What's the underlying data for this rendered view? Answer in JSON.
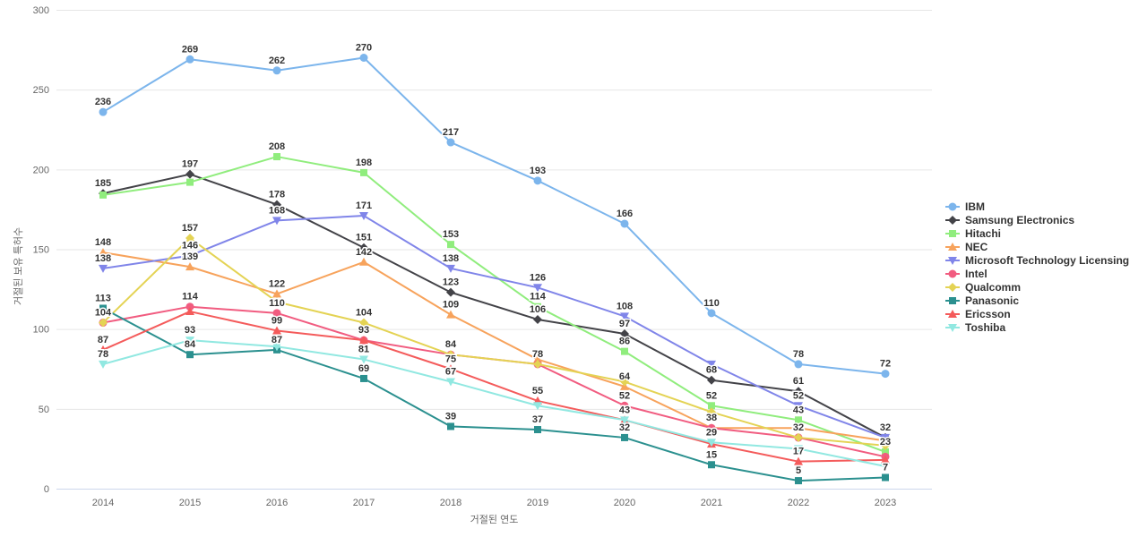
{
  "chart_data": {
    "type": "line",
    "title": "",
    "xlabel": "거절된 연도",
    "ylabel": "거절된 보유 특허수",
    "x_categories": [
      "2014",
      "2015",
      "2016",
      "2017",
      "2018",
      "2019",
      "2020",
      "2021",
      "2022",
      "2023"
    ],
    "y_ticks": [
      0,
      50,
      100,
      150,
      200,
      250,
      300
    ],
    "ylim": [
      0,
      300
    ],
    "grid": true,
    "legend_position": "right",
    "gridline_color": "#e6e6e6",
    "axis_line_color": "#ccd6eb",
    "tick_label_color": "#666666",
    "data_label_color": "#333333",
    "legend_text_color": "#333333",
    "series": [
      {
        "name": "IBM",
        "color": "#7cb5ec",
        "marker": "circle",
        "values": [
          236,
          269,
          262,
          270,
          217,
          193,
          166,
          110,
          78,
          72
        ],
        "label_shown": [
          true,
          true,
          true,
          true,
          true,
          true,
          true,
          true,
          true,
          true
        ]
      },
      {
        "name": "Samsung Electronics",
        "color": "#434348",
        "marker": "diamond",
        "values": [
          185,
          197,
          178,
          151,
          123,
          106,
          97,
          68,
          61,
          32
        ],
        "label_shown": [
          true,
          true,
          true,
          true,
          true,
          true,
          true,
          true,
          true,
          true
        ]
      },
      {
        "name": "Hitachi",
        "color": "#90ed7d",
        "marker": "square",
        "values": [
          184,
          192,
          208,
          198,
          153,
          114,
          86,
          52,
          43,
          23
        ],
        "label_shown": [
          false,
          false,
          true,
          true,
          true,
          true,
          true,
          true,
          true,
          true
        ]
      },
      {
        "name": "NEC",
        "color": "#f7a35c",
        "marker": "triangle",
        "values": [
          148,
          139,
          122,
          142,
          109,
          81,
          64,
          38,
          38,
          30
        ],
        "label_shown": [
          true,
          true,
          true,
          true,
          true,
          false,
          true,
          false,
          false,
          false
        ]
      },
      {
        "name": "Microsoft Technology Licensing",
        "color": "#8085e9",
        "marker": "triangle-down",
        "values": [
          138,
          146,
          168,
          171,
          138,
          126,
          108,
          78,
          52,
          32
        ],
        "label_shown": [
          true,
          true,
          true,
          true,
          true,
          true,
          true,
          false,
          true,
          false
        ]
      },
      {
        "name": "Intel",
        "color": "#f15c80",
        "marker": "circle",
        "values": [
          104,
          114,
          110,
          93,
          84,
          78,
          52,
          38,
          32,
          20
        ],
        "label_shown": [
          true,
          true,
          true,
          true,
          true,
          true,
          true,
          true,
          false,
          false
        ]
      },
      {
        "name": "Qualcomm",
        "color": "#e4d354",
        "marker": "diamond",
        "values": [
          104,
          157,
          117,
          104,
          84,
          78,
          67,
          48,
          32,
          27
        ],
        "label_shown": [
          false,
          true,
          false,
          true,
          false,
          false,
          false,
          false,
          true,
          false
        ]
      },
      {
        "name": "Panasonic",
        "color": "#2b908f",
        "marker": "square",
        "values": [
          113,
          84,
          87,
          69,
          39,
          37,
          32,
          15,
          5,
          7
        ],
        "label_shown": [
          true,
          true,
          true,
          true,
          true,
          true,
          true,
          true,
          true,
          true
        ]
      },
      {
        "name": "Ericsson",
        "color": "#f45b5b",
        "marker": "triangle",
        "values": [
          87,
          111,
          99,
          93,
          75,
          55,
          43,
          28,
          17,
          18
        ],
        "label_shown": [
          true,
          false,
          true,
          false,
          true,
          true,
          true,
          false,
          true,
          false
        ]
      },
      {
        "name": "Toshiba",
        "color": "#91e8e1",
        "marker": "triangle-down",
        "values": [
          78,
          93,
          89,
          81,
          67,
          52,
          43,
          29,
          25,
          14
        ],
        "label_shown": [
          true,
          true,
          false,
          true,
          true,
          false,
          false,
          true,
          false,
          false
        ]
      }
    ]
  }
}
